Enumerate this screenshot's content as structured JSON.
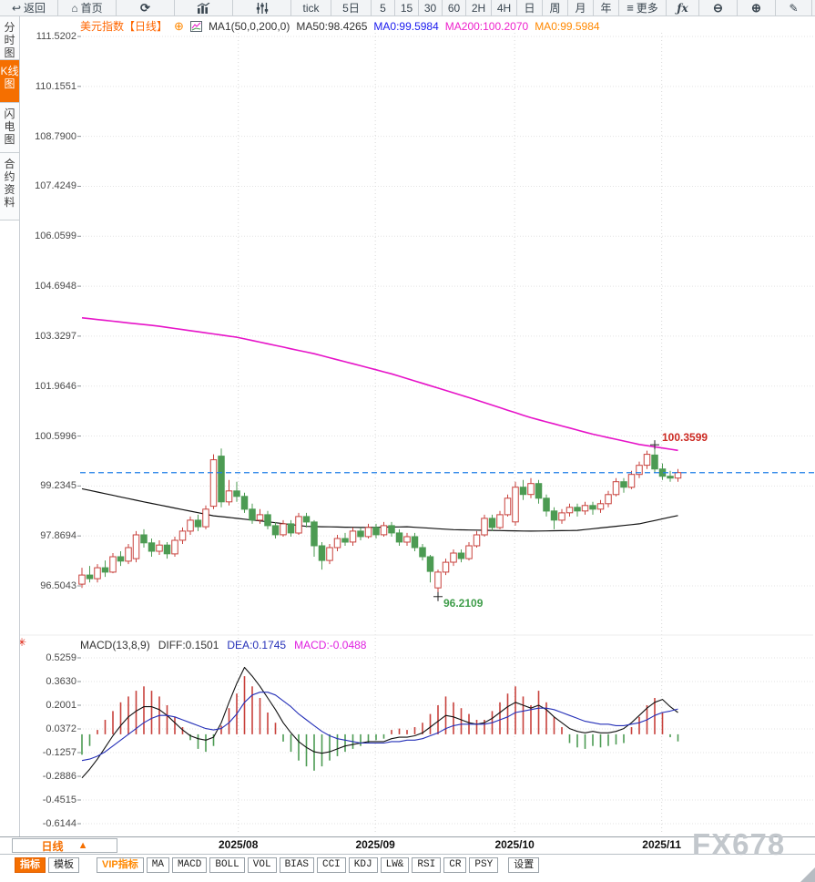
{
  "toolbar": {
    "items": [
      {
        "name": "back-button",
        "label": "返回",
        "icon": "back"
      },
      {
        "name": "home-button",
        "label": "首页",
        "icon": "home"
      },
      {
        "name": "refresh-button",
        "icon": "refresh"
      },
      {
        "name": "chart-style-button",
        "icon": "bars"
      },
      {
        "name": "indicator-params-button",
        "icon": "sliders"
      },
      {
        "name": "period-tick-button",
        "label": "tick"
      },
      {
        "name": "period-5d-button",
        "label": "5日"
      },
      {
        "name": "period-5m-button",
        "label": "5"
      },
      {
        "name": "period-15m-button",
        "label": "15"
      },
      {
        "name": "period-30m-button",
        "label": "30"
      },
      {
        "name": "period-60m-button",
        "label": "60"
      },
      {
        "name": "period-2h-button",
        "label": "2H"
      },
      {
        "name": "period-4h-button",
        "label": "4H"
      },
      {
        "name": "period-day-button",
        "label": "日"
      },
      {
        "name": "period-week-button",
        "label": "周"
      },
      {
        "name": "period-month-button",
        "label": "月"
      },
      {
        "name": "period-year-button",
        "label": "年"
      },
      {
        "name": "more-button",
        "label": "更多",
        "icon": "menu"
      },
      {
        "name": "formula-button",
        "icon": "fx"
      },
      {
        "name": "zoom-out-button",
        "icon": "zoomout"
      },
      {
        "name": "zoom-in-button",
        "icon": "zoomin"
      },
      {
        "name": "draw-pen-button",
        "icon": "pen"
      }
    ]
  },
  "sidebar": {
    "items": [
      {
        "name": "sidebar-item-time-chart",
        "label": "分时图",
        "active": false
      },
      {
        "name": "sidebar-item-kline-chart",
        "label": "K线图",
        "active": true
      },
      {
        "name": "sidebar-item-lightning-chart",
        "label": "闪电图",
        "active": false
      },
      {
        "name": "sidebar-item-contract-info",
        "label": "合约资料",
        "active": false
      }
    ]
  },
  "chart_header": {
    "symbol": "美元指数",
    "period": "【日线】",
    "ma_settings": "MA1(50,0,200,0)",
    "ma50": "MA50:98.4265",
    "ma0_blue": "MA0:99.5984",
    "ma200": "MA200:100.2070",
    "ma0_orange": "MA0:99.5984"
  },
  "macd_header": {
    "title": "MACD(13,8,9)",
    "diff": "DIFF:0.1501",
    "dea": "DEA:0.1745",
    "macd": "MACD:-0.0488"
  },
  "icons": {
    "sun": "✳",
    "add_circle": "⊕"
  },
  "price_axis": [
    "111.5202",
    "110.1551",
    "108.7900",
    "107.4249",
    "106.0599",
    "104.6948",
    "103.3297",
    "101.9646",
    "100.5996",
    "99.2345",
    "97.8694",
    "96.5043"
  ],
  "macd_axis": [
    "0.5259",
    "0.3630",
    "0.2001",
    "0.0372",
    "-0.1257",
    "-0.2886",
    "-0.4515",
    "-0.6144"
  ],
  "x_axis": {
    "labels": [
      "2025/08",
      "2025/09",
      "2025/10",
      "2025/11"
    ]
  },
  "annotations": {
    "high": "100.3599",
    "low": "96.2109"
  },
  "period_button": {
    "label": "日线",
    "arrow": "▲"
  },
  "bottom_tabs": [
    {
      "name": "tab-indicators",
      "label": "指标",
      "state": "active"
    },
    {
      "name": "tab-templates",
      "label": "模板",
      "state": ""
    },
    {
      "name": "tab-vip-indicators",
      "label": "VIP指标",
      "state": "vip"
    },
    {
      "name": "tab-ma",
      "label": "MA",
      "state": ""
    },
    {
      "name": "tab-macd",
      "label": "MACD",
      "state": ""
    },
    {
      "name": "tab-boll",
      "label": "BOLL",
      "state": ""
    },
    {
      "name": "tab-vol",
      "label": "VOL",
      "state": ""
    },
    {
      "name": "tab-bias",
      "label": "BIAS",
      "state": ""
    },
    {
      "name": "tab-cci",
      "label": "CCI",
      "state": ""
    },
    {
      "name": "tab-kdj",
      "label": "KDJ",
      "state": ""
    },
    {
      "name": "tab-lw",
      "label": "LW&",
      "state": ""
    },
    {
      "name": "tab-rsi",
      "label": "RSI",
      "state": ""
    },
    {
      "name": "tab-cr",
      "label": "CR",
      "state": ""
    },
    {
      "name": "tab-psy",
      "label": "PSY",
      "state": ""
    },
    {
      "name": "tab-settings",
      "label": "设置",
      "state": ""
    }
  ],
  "watermark": "FX678",
  "colors": {
    "up": "#c8413c",
    "down": "#4c9b53",
    "ma50": "#111111",
    "ma200": "#e613c8",
    "diff": "#111111",
    "dea": "#2530b8",
    "last_price_line": "#1f7ee8",
    "accent_orange": "#f56f00",
    "grid": "#e3e3e3",
    "vgrid": "#d7d7d7",
    "tick": "#8a9096"
  },
  "chart_data": {
    "type": "candlestick_with_macd",
    "symbol": "美元指数",
    "period": "日线",
    "price_range": [
      96.5043,
      111.5202
    ],
    "macd_range": [
      -0.6144,
      0.5259
    ],
    "month_start_indices": [
      20.2,
      37.9,
      55.9,
      74.9
    ],
    "annotations": {
      "high_value": 100.3599,
      "high_index": 74,
      "low_value": 96.2109,
      "low_index": 46,
      "last_close": 99.5984
    },
    "candles": [
      [
        96.55,
        97.0,
        96.45,
        96.8
      ],
      [
        96.8,
        97.05,
        96.6,
        96.7
      ],
      [
        96.7,
        97.1,
        96.6,
        97.0
      ],
      [
        97.0,
        97.2,
        96.75,
        96.88
      ],
      [
        96.88,
        97.4,
        96.85,
        97.3
      ],
      [
        97.3,
        97.45,
        97.05,
        97.18
      ],
      [
        97.18,
        97.65,
        97.1,
        97.55
      ],
      [
        97.25,
        98.0,
        97.15,
        97.9
      ],
      [
        97.9,
        98.05,
        97.55,
        97.68
      ],
      [
        97.68,
        97.8,
        97.3,
        97.45
      ],
      [
        97.45,
        97.75,
        97.35,
        97.62
      ],
      [
        97.62,
        97.7,
        97.25,
        97.38
      ],
      [
        97.38,
        97.85,
        97.3,
        97.75
      ],
      [
        97.75,
        98.1,
        97.65,
        98.0
      ],
      [
        98.0,
        98.4,
        97.9,
        98.3
      ],
      [
        98.3,
        98.45,
        98.0,
        98.12
      ],
      [
        98.12,
        98.7,
        98.05,
        98.6
      ],
      [
        98.68,
        100.1,
        98.6,
        99.95
      ],
      [
        100.05,
        100.26,
        98.65,
        98.8
      ],
      [
        98.8,
        99.4,
        98.7,
        99.1
      ],
      [
        99.1,
        99.35,
        98.8,
        98.95
      ],
      [
        98.95,
        99.05,
        98.5,
        98.6
      ],
      [
        98.6,
        98.75,
        98.2,
        98.3
      ],
      [
        98.3,
        98.6,
        98.2,
        98.45
      ],
      [
        98.45,
        98.55,
        98.05,
        98.15
      ],
      [
        98.15,
        98.25,
        97.8,
        97.9
      ],
      [
        97.9,
        98.3,
        97.85,
        98.2
      ],
      [
        98.2,
        98.3,
        97.85,
        97.95
      ],
      [
        97.95,
        98.5,
        97.9,
        98.4
      ],
      [
        98.4,
        98.5,
        98.1,
        98.25
      ],
      [
        98.25,
        98.3,
        97.3,
        97.6
      ],
      [
        97.6,
        97.7,
        96.95,
        97.2
      ],
      [
        97.2,
        97.65,
        97.1,
        97.55
      ],
      [
        97.55,
        97.9,
        97.45,
        97.8
      ],
      [
        97.8,
        97.95,
        97.6,
        97.7
      ],
      [
        97.7,
        98.1,
        97.6,
        98.0
      ],
      [
        98.0,
        98.1,
        97.75,
        97.85
      ],
      [
        97.85,
        98.2,
        97.8,
        98.1
      ],
      [
        98.1,
        98.2,
        97.8,
        97.9
      ],
      [
        97.9,
        98.25,
        97.85,
        98.15
      ],
      [
        98.15,
        98.25,
        97.85,
        97.95
      ],
      [
        97.95,
        98.05,
        97.6,
        97.7
      ],
      [
        97.7,
        97.95,
        97.6,
        97.85
      ],
      [
        97.85,
        97.95,
        97.45,
        97.55
      ],
      [
        97.55,
        97.65,
        97.2,
        97.3
      ],
      [
        97.3,
        97.35,
        96.6,
        96.9
      ],
      [
        96.45,
        96.95,
        96.2109,
        96.88
      ],
      [
        96.88,
        97.25,
        96.8,
        97.15
      ],
      [
        97.15,
        97.5,
        97.05,
        97.4
      ],
      [
        97.4,
        97.5,
        97.15,
        97.25
      ],
      [
        97.25,
        97.7,
        97.2,
        97.6
      ],
      [
        97.6,
        98.0,
        97.55,
        97.9
      ],
      [
        97.9,
        98.45,
        97.85,
        98.35
      ],
      [
        98.35,
        98.45,
        98.0,
        98.1
      ],
      [
        98.1,
        98.55,
        98.05,
        98.45
      ],
      [
        98.45,
        99.0,
        98.4,
        98.9
      ],
      [
        98.25,
        99.35,
        98.15,
        99.2
      ],
      [
        99.2,
        99.4,
        98.85,
        99.0
      ],
      [
        99.0,
        99.45,
        98.9,
        99.3
      ],
      [
        99.3,
        99.4,
        98.75,
        98.9
      ],
      [
        98.9,
        99.0,
        98.4,
        98.55
      ],
      [
        98.55,
        98.65,
        98.05,
        98.3
      ],
      [
        98.3,
        98.6,
        98.2,
        98.5
      ],
      [
        98.5,
        98.75,
        98.4,
        98.65
      ],
      [
        98.65,
        98.75,
        98.4,
        98.55
      ],
      [
        98.55,
        98.8,
        98.45,
        98.7
      ],
      [
        98.7,
        98.8,
        98.45,
        98.6
      ],
      [
        98.6,
        98.85,
        98.5,
        98.75
      ],
      [
        98.75,
        99.1,
        98.65,
        99.0
      ],
      [
        99.0,
        99.45,
        98.95,
        99.35
      ],
      [
        99.35,
        99.45,
        99.05,
        99.2
      ],
      [
        99.2,
        99.65,
        99.15,
        99.55
      ],
      [
        99.55,
        99.9,
        99.45,
        99.8
      ],
      [
        99.8,
        100.2,
        99.7,
        100.1
      ],
      [
        100.08,
        100.3599,
        99.6,
        99.7
      ],
      [
        99.7,
        99.85,
        99.4,
        99.5
      ],
      [
        99.5,
        99.65,
        99.35,
        99.45
      ],
      [
        99.45,
        99.7,
        99.35,
        99.5984
      ]
    ],
    "ma50_anchors": [
      [
        0,
        99.16
      ],
      [
        8,
        98.8
      ],
      [
        17,
        98.42
      ],
      [
        23,
        98.28
      ],
      [
        29,
        98.13
      ],
      [
        36,
        98.1
      ],
      [
        42,
        98.12
      ],
      [
        48,
        98.04
      ],
      [
        58,
        98.0
      ],
      [
        64,
        98.02
      ],
      [
        72,
        98.2
      ],
      [
        77,
        98.4265
      ]
    ],
    "ma200_anchors": [
      [
        0,
        103.83
      ],
      [
        10,
        103.6
      ],
      [
        20,
        103.3
      ],
      [
        30,
        102.85
      ],
      [
        40,
        102.3
      ],
      [
        50,
        101.65
      ],
      [
        58,
        101.1
      ],
      [
        66,
        100.65
      ],
      [
        72,
        100.37
      ],
      [
        77,
        100.207
      ]
    ],
    "macd_hist": [
      -0.14,
      -0.08,
      0.03,
      0.1,
      0.16,
      0.22,
      0.26,
      0.3,
      0.33,
      0.3,
      0.26,
      0.2,
      0.12,
      0.05,
      -0.04,
      -0.1,
      -0.12,
      -0.08,
      0.06,
      0.18,
      0.28,
      0.4,
      0.33,
      0.25,
      0.15,
      0.08,
      -0.05,
      -0.12,
      -0.18,
      -0.22,
      -0.25,
      -0.22,
      -0.18,
      -0.15,
      -0.12,
      -0.1,
      -0.08,
      -0.06,
      -0.04,
      -0.03,
      0.03,
      0.04,
      0.03,
      0.05,
      0.08,
      0.14,
      0.2,
      0.26,
      0.22,
      0.18,
      0.14,
      0.1,
      0.1,
      0.16,
      0.22,
      0.28,
      0.33,
      0.26,
      0.2,
      0.3,
      0.22,
      0.12,
      0.05,
      -0.06,
      -0.09,
      -0.1,
      -0.08,
      -0.09,
      -0.08,
      -0.07,
      -0.06,
      0.05,
      0.12,
      0.2,
      0.25,
      0.15,
      -0.02,
      -0.0488
    ],
    "diff_line": [
      -0.3,
      -0.24,
      -0.17,
      -0.09,
      -0.01,
      0.06,
      0.12,
      0.16,
      0.19,
      0.19,
      0.17,
      0.13,
      0.08,
      0.03,
      -0.01,
      -0.03,
      -0.04,
      -0.02,
      0.08,
      0.22,
      0.35,
      0.46,
      0.4,
      0.33,
      0.25,
      0.17,
      0.08,
      0.01,
      -0.05,
      -0.09,
      -0.12,
      -0.13,
      -0.12,
      -0.1,
      -0.08,
      -0.07,
      -0.06,
      -0.05,
      -0.05,
      -0.05,
      -0.03,
      -0.02,
      -0.02,
      -0.01,
      0.01,
      0.05,
      0.09,
      0.13,
      0.12,
      0.1,
      0.08,
      0.07,
      0.08,
      0.11,
      0.15,
      0.19,
      0.22,
      0.2,
      0.18,
      0.2,
      0.17,
      0.12,
      0.08,
      0.04,
      0.02,
      0.01,
      0.02,
      0.01,
      0.01,
      0.02,
      0.04,
      0.08,
      0.13,
      0.18,
      0.22,
      0.24,
      0.19,
      0.1501
    ],
    "dea_line": [
      -0.18,
      -0.17,
      -0.15,
      -0.12,
      -0.08,
      -0.04,
      0.0,
      0.04,
      0.08,
      0.11,
      0.13,
      0.13,
      0.12,
      0.1,
      0.08,
      0.06,
      0.04,
      0.03,
      0.04,
      0.08,
      0.14,
      0.22,
      0.27,
      0.29,
      0.29,
      0.27,
      0.23,
      0.19,
      0.14,
      0.1,
      0.06,
      0.02,
      -0.01,
      -0.03,
      -0.04,
      -0.05,
      -0.06,
      -0.06,
      -0.06,
      -0.06,
      -0.05,
      -0.05,
      -0.04,
      -0.04,
      -0.03,
      -0.01,
      0.01,
      0.04,
      0.06,
      0.07,
      0.07,
      0.07,
      0.07,
      0.08,
      0.1,
      0.12,
      0.15,
      0.16,
      0.17,
      0.18,
      0.18,
      0.17,
      0.15,
      0.13,
      0.11,
      0.09,
      0.08,
      0.07,
      0.07,
      0.06,
      0.06,
      0.07,
      0.08,
      0.1,
      0.13,
      0.15,
      0.16,
      0.1745
    ]
  }
}
